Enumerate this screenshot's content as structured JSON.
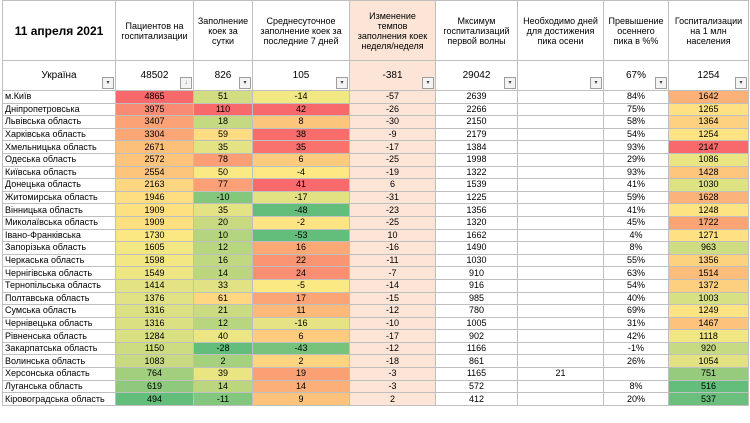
{
  "header": {
    "date": "11 апреля 2021",
    "columns": [
      "Пациентов на госпитализации",
      "Заполнение коек за сутки",
      "Среднесуточное заполнение коек за последние 7 дней",
      "Изменение темпов заполнения коек неделя/неделя",
      "Мксимум госпитализаций первой волны",
      "Необходимо дней для достижения пика осени",
      "Превышение осеннего пика в %%",
      "Госпитализации на 1 млн населения"
    ]
  },
  "total": {
    "name": "Україна",
    "patients": "48502",
    "daily": "826",
    "avg7": "105",
    "change": "-381",
    "max_first": "29042",
    "days_needed": "",
    "excess": "67%",
    "per_million": "1254"
  },
  "filter_icons": [
    "filter-dropdown-icon",
    "sort-desc-filter-icon"
  ],
  "rows": [
    {
      "name": "м.Київ",
      "patients": "4865",
      "daily": "51",
      "avg7": "-14",
      "change": "-57",
      "max_first": "2639",
      "days": "",
      "excess": "84%",
      "per_m": "1642",
      "c_patients": "#f8696b",
      "c_daily": "#d2dd82",
      "c_avg7": "#f1e783",
      "c_per_m": "#fbb178"
    },
    {
      "name": "Дніпропетровська",
      "patients": "3975",
      "daily": "110",
      "avg7": "42",
      "change": "-26",
      "max_first": "2266",
      "days": "",
      "excess": "75%",
      "per_m": "1265",
      "c_patients": "#f98b74",
      "c_daily": "#f8696b",
      "c_avg7": "#f8696b",
      "c_per_m": "#fee182"
    },
    {
      "name": "Львівська область",
      "patients": "3407",
      "daily": "18",
      "avg7": "8",
      "change": "-30",
      "max_first": "2150",
      "days": "",
      "excess": "58%",
      "per_m": "1364",
      "c_patients": "#fba276",
      "c_daily": "#c5d980",
      "c_avg7": "#fcc57c",
      "c_per_m": "#fdd17f"
    },
    {
      "name": "Харківська область",
      "patients": "3304",
      "daily": "59",
      "avg7": "38",
      "change": "-9",
      "max_first": "2179",
      "days": "",
      "excess": "54%",
      "per_m": "1254",
      "c_patients": "#fba677",
      "c_daily": "#fedc81",
      "c_avg7": "#f86d6c",
      "c_per_m": "#fee382"
    },
    {
      "name": "Хмельницька область",
      "patients": "2671",
      "daily": "35",
      "avg7": "35",
      "change": "-17",
      "max_first": "1384",
      "days": "",
      "excess": "93%",
      "per_m": "2147",
      "c_patients": "#fdc07b",
      "c_daily": "#e4e383",
      "c_avg7": "#f9726d",
      "c_per_m": "#f8696b"
    },
    {
      "name": "Одеська область",
      "patients": "2572",
      "daily": "78",
      "avg7": "6",
      "change": "-25",
      "max_first": "1998",
      "days": "",
      "excess": "29%",
      "per_m": "1086",
      "c_patients": "#fdc47c",
      "c_daily": "#fb9e75",
      "c_avg7": "#fdcb7d",
      "c_per_m": "#e9e583"
    },
    {
      "name": "Київська область",
      "patients": "2554",
      "daily": "50",
      "avg7": "-4",
      "change": "-19",
      "max_first": "1322",
      "days": "",
      "excess": "93%",
      "per_m": "1428",
      "c_patients": "#fdc57c",
      "c_daily": "#fbe983",
      "c_avg7": "#fee883",
      "c_per_m": "#fdc67c"
    },
    {
      "name": "Донецька область",
      "patients": "2163",
      "daily": "77",
      "avg7": "41",
      "change": "6",
      "max_first": "1539",
      "days": "",
      "excess": "41%",
      "per_m": "1030",
      "c_patients": "#fed580",
      "c_daily": "#fb9f76",
      "c_avg7": "#f86a6b",
      "c_per_m": "#dde283"
    },
    {
      "name": "Житомирська область",
      "patients": "1946",
      "daily": "-10",
      "avg7": "-17",
      "change": "-31",
      "max_first": "1225",
      "days": "",
      "excess": "59%",
      "per_m": "1628",
      "c_patients": "#fede81",
      "c_daily": "#85c77d",
      "c_avg7": "#e2e283",
      "c_per_m": "#fbb379"
    },
    {
      "name": "Вінницька область",
      "patients": "1909",
      "daily": "35",
      "avg7": "-48",
      "change": "-23",
      "max_first": "1356",
      "days": "",
      "excess": "41%",
      "per_m": "1248",
      "c_patients": "#fee081",
      "c_daily": "#e4e383",
      "c_avg7": "#63be7b",
      "c_per_m": "#fee382"
    },
    {
      "name": "Миколаївська область",
      "patients": "1909",
      "daily": "20",
      "avg7": "-2",
      "change": "-25",
      "max_first": "1320",
      "days": "",
      "excess": "45%",
      "per_m": "1722",
      "c_patients": "#fee081",
      "c_daily": "#c8da80",
      "c_avg7": "#fee483",
      "c_per_m": "#faa476"
    },
    {
      "name": "Івано-Франківська",
      "patients": "1730",
      "daily": "10",
      "avg7": "-53",
      "change": "10",
      "max_first": "1662",
      "days": "",
      "excess": "4%",
      "per_m": "1271",
      "c_patients": "#fbe883",
      "c_daily": "#b4d47f",
      "c_avg7": "#63be7b",
      "c_per_m": "#fee182"
    },
    {
      "name": "Запорізька область",
      "patients": "1605",
      "daily": "12",
      "avg7": "16",
      "change": "-16",
      "max_first": "1490",
      "days": "",
      "excess": "8%",
      "per_m": "963",
      "c_patients": "#f3e783",
      "c_daily": "#b8d57f",
      "c_avg7": "#fba877",
      "c_per_m": "#cfdd82"
    },
    {
      "name": "Черкаська область",
      "patients": "1598",
      "daily": "16",
      "avg7": "22",
      "change": "-11",
      "max_first": "1030",
      "days": "",
      "excess": "55%",
      "per_m": "1356",
      "c_patients": "#f2e783",
      "c_daily": "#c0d880",
      "c_avg7": "#fa9473",
      "c_per_m": "#fdd27f"
    },
    {
      "name": "Чернігівська область",
      "patients": "1549",
      "daily": "14",
      "avg7": "24",
      "change": "-7",
      "max_first": "910",
      "days": "",
      "excess": "63%",
      "per_m": "1514",
      "c_patients": "#eee683",
      "c_daily": "#bcd680",
      "c_avg7": "#fa8e72",
      "c_per_m": "#fcbc7a"
    },
    {
      "name": "Тернопільська область",
      "patients": "1414",
      "daily": "33",
      "avg7": "-5",
      "change": "-14",
      "max_first": "916",
      "days": "",
      "excess": "54%",
      "per_m": "1372",
      "c_patients": "#e3e383",
      "c_daily": "#e0e283",
      "c_avg7": "#fbe983",
      "c_per_m": "#fdd07f"
    },
    {
      "name": "Полтавська область",
      "patients": "1376",
      "daily": "61",
      "avg7": "17",
      "change": "-15",
      "max_first": "985",
      "days": "",
      "excess": "40%",
      "per_m": "1003",
      "c_patients": "#e0e283",
      "c_daily": "#fed780",
      "c_avg7": "#fba576",
      "c_per_m": "#d7e082"
    },
    {
      "name": "Сумська область",
      "patients": "1316",
      "daily": "21",
      "avg7": "11",
      "change": "-12",
      "max_first": "780",
      "days": "",
      "excess": "69%",
      "per_m": "1249",
      "c_patients": "#dbe182",
      "c_daily": "#cadb81",
      "c_avg7": "#fcb97a",
      "c_per_m": "#fee382"
    },
    {
      "name": "Чернівецька область",
      "patients": "1316",
      "daily": "12",
      "avg7": "-16",
      "change": "-10",
      "max_first": "1005",
      "days": "",
      "excess": "31%",
      "per_m": "1467",
      "c_patients": "#dbe182",
      "c_daily": "#b8d57f",
      "c_avg7": "#e5e383",
      "c_per_m": "#fdc27b"
    },
    {
      "name": "Рівненська область",
      "patients": "1284",
      "daily": "40",
      "avg7": "6",
      "change": "-17",
      "max_first": "902",
      "days": "",
      "excess": "42%",
      "per_m": "1118",
      "c_patients": "#d8e082",
      "c_daily": "#ece583",
      "c_avg7": "#fdcb7d",
      "c_per_m": "#f0e683"
    },
    {
      "name": "Закарпатська область",
      "patients": "1150",
      "daily": "-28",
      "avg7": "-43",
      "change": "-12",
      "max_first": "1166",
      "days": "",
      "excess": "-1%",
      "per_m": "920",
      "c_patients": "#cddc81",
      "c_daily": "#63be7b",
      "c_avg7": "#78c37c",
      "c_per_m": "#c6da81"
    },
    {
      "name": "Волинська область",
      "patients": "1083",
      "daily": "2",
      "avg7": "2",
      "change": "-18",
      "max_first": "861",
      "days": "",
      "excess": "26%",
      "per_m": "1054",
      "c_patients": "#c7da81",
      "c_daily": "#a5d07e",
      "c_avg7": "#fdd57f",
      "c_per_m": "#e2e283"
    },
    {
      "name": "Херсонська область",
      "patients": "764",
      "daily": "39",
      "avg7": "19",
      "change": "-3",
      "max_first": "1165",
      "days": "21",
      "excess": "",
      "per_m": "751",
      "c_patients": "#a2cf7e",
      "c_daily": "#eae583",
      "c_avg7": "#fb9f75",
      "c_per_m": "#96cb7d"
    },
    {
      "name": "Луганська область",
      "patients": "619",
      "daily": "14",
      "avg7": "14",
      "change": "-3",
      "max_first": "572",
      "days": "",
      "excess": "8%",
      "per_m": "516",
      "c_patients": "#8ec97d",
      "c_daily": "#bcd680",
      "c_avg7": "#fcaf78",
      "c_per_m": "#63be7b"
    },
    {
      "name": "Кіровоградська область",
      "patients": "494",
      "daily": "-11",
      "avg7": "9",
      "change": "2",
      "max_first": "412",
      "days": "",
      "excess": "20%",
      "per_m": "537",
      "c_patients": "#63be7b",
      "c_daily": "#83c67d",
      "c_avg7": "#fdc27b",
      "c_per_m": "#69bf7b"
    }
  ]
}
